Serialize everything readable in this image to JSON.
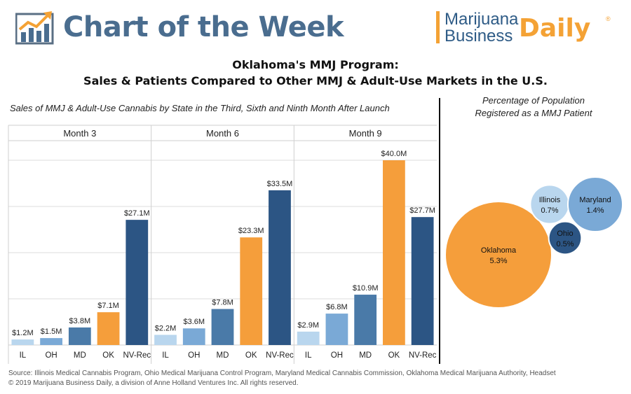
{
  "header": {
    "title": "Chart of the Week",
    "brand_line1": "Marijuana",
    "brand_line2": "Business",
    "brand_daily": "Daily",
    "brand_reg": "®"
  },
  "title_line1": "Oklahoma's MMJ Program:",
  "title_line2": "Sales & Patients Compared to Other MMJ & Adult-Use Markets in the U.S.",
  "colors": {
    "IL": "#b9d6ee",
    "OH": "#7aa9d6",
    "MD": "#4a7aa8",
    "OK": "#f59e3b",
    "NV-Rec": "#2c5584",
    "header_blue": "#4a6d8f",
    "accent": "#f4a235"
  },
  "chart_data": [
    {
      "type": "bar",
      "title": "Sales of MMJ & Adult-Use Cannabis by State in the Third, Sixth and Ninth Month After Launch",
      "unit": "$M",
      "categories": [
        "IL",
        "OH",
        "MD",
        "OK",
        "NV-Rec"
      ],
      "ylim": [
        0,
        45
      ],
      "grid": true,
      "panels": [
        {
          "name": "Month 3",
          "values": [
            1.2,
            1.5,
            3.8,
            7.1,
            27.1
          ],
          "labels": [
            "$1.2M",
            "$1.5M",
            "$3.8M",
            "$7.1M",
            "$27.1M"
          ]
        },
        {
          "name": "Month 6",
          "values": [
            2.2,
            3.6,
            7.8,
            23.3,
            33.5
          ],
          "labels": [
            "$2.2M",
            "$3.6M",
            "$7.8M",
            "$23.3M",
            "$33.5M"
          ]
        },
        {
          "name": "Month 9",
          "values": [
            2.9,
            6.8,
            10.9,
            40.0,
            27.7
          ],
          "labels": [
            "$2.9M",
            "$6.8M",
            "$10.9M",
            "$40.0M",
            "$27.7M"
          ]
        }
      ]
    },
    {
      "type": "bubble",
      "title": "Percentage of Population Registered as a MMJ Patient",
      "title_line1": "Percentage of Population",
      "title_line2": "Registered as a MMJ Patient",
      "points": [
        {
          "name": "Oklahoma",
          "value": 5.3,
          "label": "5.3%",
          "color": "#f59e3b"
        },
        {
          "name": "Illinois",
          "value": 0.7,
          "label": "0.7%",
          "color": "#b9d6ee"
        },
        {
          "name": "Maryland",
          "value": 1.4,
          "label": "1.4%",
          "color": "#7aa9d6"
        },
        {
          "name": "Ohio",
          "value": 0.5,
          "label": "0.5%",
          "color": "#2c5584"
        }
      ]
    }
  ],
  "source_line1": "Source: Illinois Medical Cannabis Program, Ohio Medical Marijuana Control Program, Maryland Medical Cannabis Commission, Oklahoma Medical Marijuana Authority, Headset",
  "source_line2": "© 2019 Marijuana Business Daily, a division of Anne Holland Ventures Inc. All rights reserved."
}
